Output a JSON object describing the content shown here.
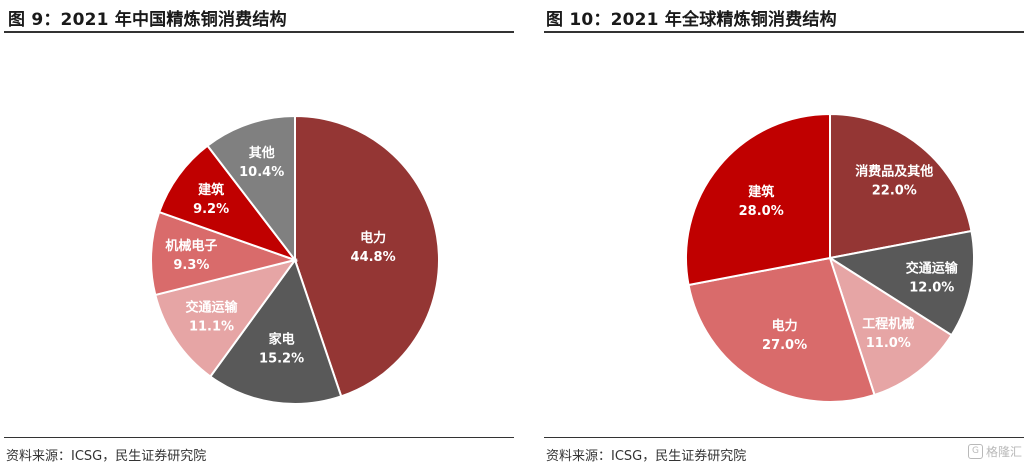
{
  "left": {
    "title": "图 9：2021 年中国精炼铜消费结构",
    "source": "资料来源：ICSG，民生证券研究院"
  },
  "right": {
    "title": "图 10：2021 年全球精炼铜消费结构",
    "source": "资料来源：ICSG，民生证券研究院"
  },
  "watermark": {
    "text": "格隆汇",
    "icon": "g-logo-icon"
  },
  "chart_data": [
    {
      "type": "pie",
      "title": "图 9：2021 年中国精炼铜消费结构",
      "start_angle_deg": 0,
      "direction": "clockwise",
      "slices": [
        {
          "label": "电力",
          "value": 44.8,
          "value_label": "44.8%",
          "color": "#943634"
        },
        {
          "label": "家电",
          "value": 15.2,
          "value_label": "15.2%",
          "color": "#595959"
        },
        {
          "label": "交通运输",
          "value": 11.1,
          "value_label": "11.1%",
          "color": "#e6a5a5"
        },
        {
          "label": "机械电子",
          "value": 9.3,
          "value_label": "9.3%",
          "color": "#d96b6b"
        },
        {
          "label": "建筑",
          "value": 9.2,
          "value_label": "9.2%",
          "color": "#c00000"
        },
        {
          "label": "其他",
          "value": 10.4,
          "value_label": "10.4%",
          "color": "#808080"
        }
      ]
    },
    {
      "type": "pie",
      "title": "图 10：2021 年全球精炼铜消费结构",
      "start_angle_deg": 0,
      "direction": "clockwise",
      "slices": [
        {
          "label": "消费品及其他",
          "value": 22.0,
          "value_label": "22.0%",
          "color": "#943634"
        },
        {
          "label": "交通运输",
          "value": 12.0,
          "value_label": "12.0%",
          "color": "#595959"
        },
        {
          "label": "工程机械",
          "value": 11.0,
          "value_label": "11.0%",
          "color": "#e6a5a5"
        },
        {
          "label": "电力",
          "value": 27.0,
          "value_label": "27.0%",
          "color": "#d96b6b"
        },
        {
          "label": "建筑",
          "value": 28.0,
          "value_label": "28.0%",
          "color": "#c00000"
        }
      ]
    }
  ]
}
